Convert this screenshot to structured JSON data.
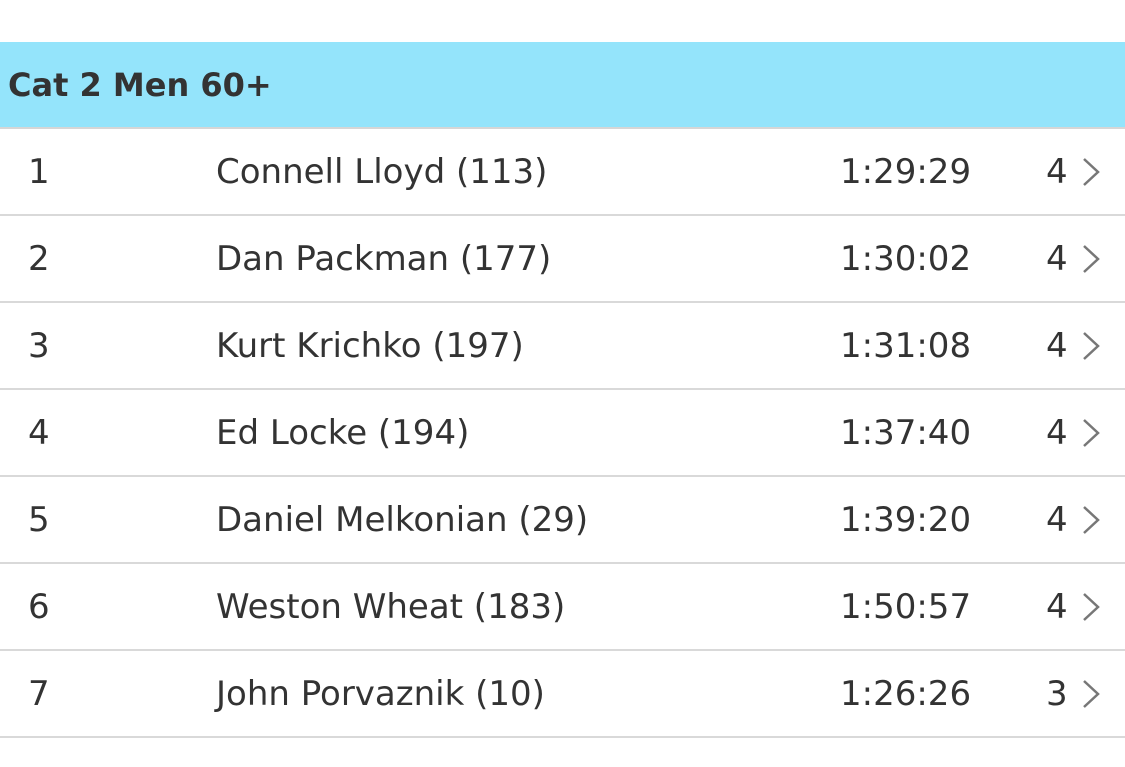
{
  "header": {
    "title": "Cat 2 Men 60+"
  },
  "table": {
    "rows": [
      {
        "place": 1,
        "name": "Connell Lloyd (113)",
        "time": "1:29:29",
        "laps": 4
      },
      {
        "place": 2,
        "name": "Dan Packman (177)",
        "time": "1:30:02",
        "laps": 4
      },
      {
        "place": 3,
        "name": "Kurt Krichko (197)",
        "time": "1:31:08",
        "laps": 4
      },
      {
        "place": 4,
        "name": "Ed Locke (194)",
        "time": "1:37:40",
        "laps": 4
      },
      {
        "place": 5,
        "name": "Daniel Melkonian (29)",
        "time": "1:39:20",
        "laps": 4
      },
      {
        "place": 6,
        "name": "Weston Wheat (183)",
        "time": "1:50:57",
        "laps": 4
      },
      {
        "place": 7,
        "name": "John Porvaznik (10)",
        "time": "1:26:26",
        "laps": 3
      }
    ]
  }
}
